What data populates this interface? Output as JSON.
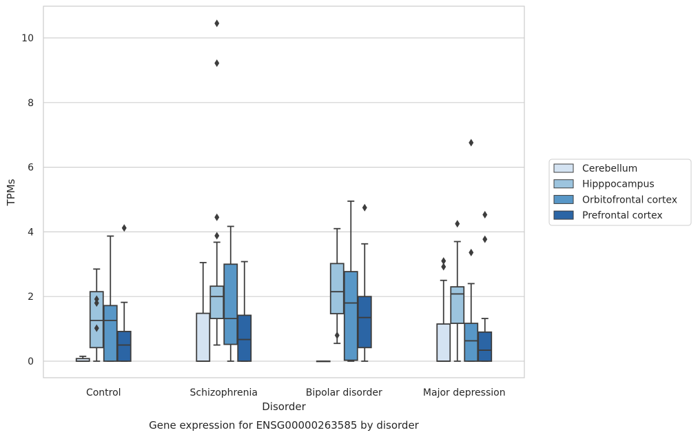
{
  "chart_data": {
    "type": "box",
    "xlabel": "Disorder",
    "ylabel": "TPMs",
    "caption": "Gene expression for ENSG00000263585 by disorder",
    "ylim": [
      -0.5,
      11
    ],
    "yticks": [
      0,
      2,
      4,
      6,
      8,
      10
    ],
    "grid": true,
    "legend_position": "right",
    "categories": [
      "Control",
      "Schizophrenia",
      "Bipolar disorder",
      "Major depression"
    ],
    "series": [
      {
        "name": "Cerebellum",
        "color": "#d4e3f2",
        "boxes": [
          {
            "whislo": 0,
            "q1": 0,
            "med": 0,
            "q3": 0.08,
            "whishi": 0.15,
            "fliers": []
          },
          {
            "whislo": 0,
            "q1": 0,
            "med": 0,
            "q3": 1.48,
            "whishi": 3.05,
            "fliers": []
          },
          {
            "whislo": 0,
            "q1": 0,
            "med": 0,
            "q3": 0,
            "whishi": 0,
            "fliers": []
          },
          {
            "whislo": 0,
            "q1": 0,
            "med": 0,
            "q3": 1.15,
            "whishi": 2.5,
            "fliers": [
              2.92,
              3.1
            ]
          }
        ]
      },
      {
        "name": "Hipppocampus",
        "color": "#9cc4de",
        "boxes": [
          {
            "whislo": 0,
            "q1": 0.42,
            "med": 1.26,
            "q3": 2.15,
            "whishi": 2.85,
            "fliers": [
              1.02,
              1.8,
              1.92
            ]
          },
          {
            "whislo": 0.5,
            "q1": 1.32,
            "med": 2.0,
            "q3": 2.32,
            "whishi": 3.68,
            "fliers": [
              3.88,
              4.45,
              9.22,
              10.45
            ]
          },
          {
            "whislo": 0.55,
            "q1": 1.47,
            "med": 2.15,
            "q3": 3.02,
            "whishi": 4.1,
            "fliers": [
              0.8
            ]
          },
          {
            "whislo": 0,
            "q1": 1.17,
            "med": 2.08,
            "q3": 2.3,
            "whishi": 3.7,
            "fliers": [
              4.25
            ]
          }
        ]
      },
      {
        "name": "Orbitofrontal cortex",
        "color": "#5897c7",
        "boxes": [
          {
            "whislo": 0,
            "q1": 0,
            "med": 1.26,
            "q3": 1.72,
            "whishi": 3.87,
            "fliers": []
          },
          {
            "whislo": 0,
            "q1": 0.52,
            "med": 1.32,
            "q3": 3.0,
            "whishi": 4.17,
            "fliers": []
          },
          {
            "whislo": 0,
            "q1": 0.03,
            "med": 1.8,
            "q3": 2.77,
            "whishi": 4.95,
            "fliers": []
          },
          {
            "whislo": 0,
            "q1": 0,
            "med": 0.63,
            "q3": 1.17,
            "whishi": 2.4,
            "fliers": [
              3.36,
              6.76
            ]
          }
        ]
      },
      {
        "name": "Prefrontal cortex",
        "color": "#2b65a5",
        "boxes": [
          {
            "whislo": 0,
            "q1": 0,
            "med": 0.5,
            "q3": 0.92,
            "whishi": 1.82,
            "fliers": [
              4.12
            ]
          },
          {
            "whislo": 0,
            "q1": 0,
            "med": 0.67,
            "q3": 1.42,
            "whishi": 3.08,
            "fliers": []
          },
          {
            "whislo": 0,
            "q1": 0.42,
            "med": 1.35,
            "q3": 2.0,
            "whishi": 3.63,
            "fliers": [
              4.75
            ]
          },
          {
            "whislo": 0,
            "q1": 0,
            "med": 0.34,
            "q3": 0.9,
            "whishi": 1.32,
            "fliers": [
              3.77,
              4.53
            ]
          }
        ]
      }
    ]
  }
}
